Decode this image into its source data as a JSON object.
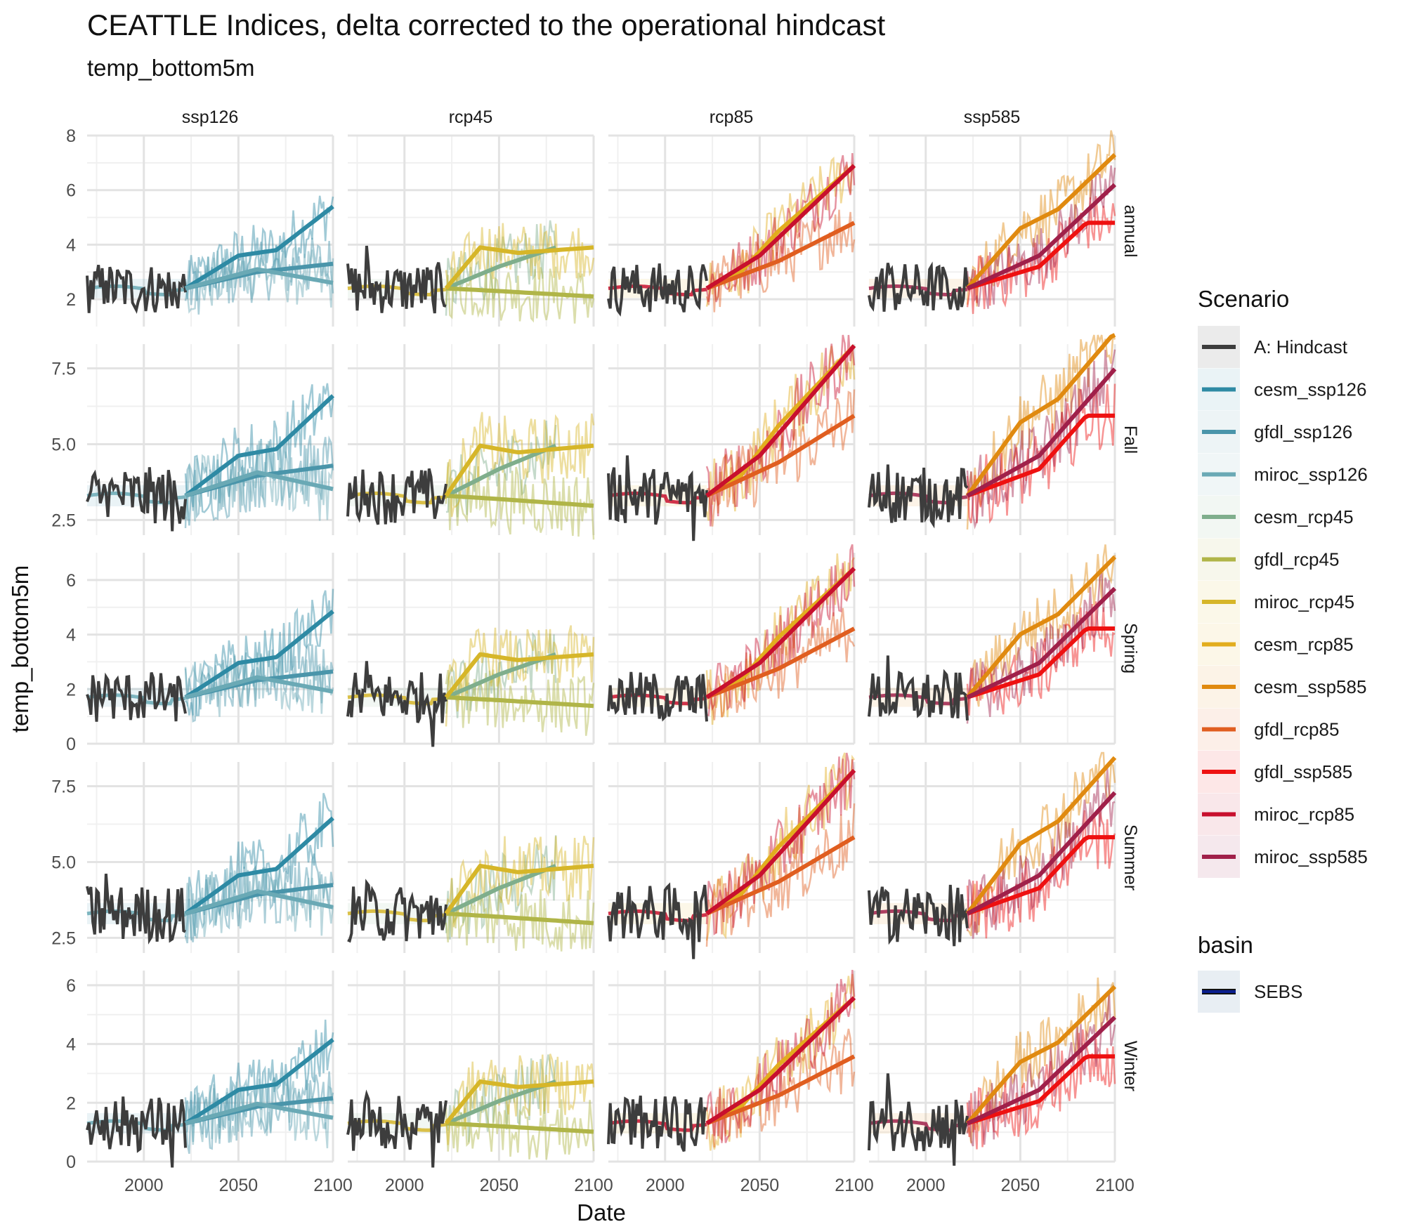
{
  "chart_data": {
    "type": "line",
    "title": "CEATTLE Indices, delta corrected to the operational hindcast",
    "subtitle": "temp_bottom5m",
    "xlabel": "Date",
    "ylabel": "temp_bottom5m",
    "xlim": [
      1970,
      2100
    ],
    "x_ticks": [
      2000,
      2050,
      2100
    ],
    "x_tick_labels": [
      "2000",
      "2050",
      "2100"
    ],
    "columns": [
      "ssp126",
      "rcp45",
      "rcp85",
      "ssp585"
    ],
    "rows": [
      {
        "label": "annual",
        "ylim": [
          1,
          8
        ],
        "y_ticks": [
          2,
          4,
          6,
          8
        ],
        "y_tick_labels": [
          "2",
          "4",
          "6",
          "8"
        ],
        "base": 2.4
      },
      {
        "label": "Fall",
        "ylim": [
          2,
          8.3
        ],
        "y_ticks": [
          2.5,
          5.0,
          7.5
        ],
        "y_tick_labels": [
          "2.5",
          "5.0",
          "7.5"
        ],
        "base": 3.3
      },
      {
        "label": "Spring",
        "ylim": [
          0,
          7
        ],
        "y_ticks": [
          0,
          2,
          4,
          6
        ],
        "y_tick_labels": [
          "0",
          "2",
          "4",
          "6"
        ],
        "base": 1.7
      },
      {
        "label": "Summer",
        "ylim": [
          2,
          8.3
        ],
        "y_ticks": [
          2.5,
          5.0,
          7.5
        ],
        "y_tick_labels": [
          "2.5",
          "5.0",
          "7.5"
        ],
        "base": 3.3
      },
      {
        "label": "Winter",
        "ylim": [
          0,
          6.5
        ],
        "y_ticks": [
          0,
          2,
          4,
          6
        ],
        "y_tick_labels": [
          "0",
          "2",
          "4",
          "6"
        ],
        "base": 1.3
      }
    ],
    "hindcast": {
      "name": "A: Hindcast",
      "x_range": [
        1970,
        2022
      ],
      "color": "#3d3d3d"
    },
    "projections": {
      "ssp126": [
        {
          "name": "cesm_ssp126",
          "color": "#2e8aa4",
          "end": 2100,
          "trend": [
            [
              2022,
              2.4
            ],
            [
              2050,
              3.6
            ],
            [
              2070,
              3.8
            ],
            [
              2100,
              5.4
            ]
          ]
        },
        {
          "name": "gfdl_ssp126",
          "color": "#4a95aa",
          "end": 2100,
          "trend": [
            [
              2022,
              2.4
            ],
            [
              2060,
              3.0
            ],
            [
              2100,
              3.3
            ]
          ]
        },
        {
          "name": "miroc_ssp126",
          "color": "#6aa9b5",
          "end": 2100,
          "trend": [
            [
              2022,
              2.4
            ],
            [
              2060,
              3.1
            ],
            [
              2100,
              2.6
            ]
          ]
        }
      ],
      "rcp45": [
        {
          "name": "cesm_rcp45",
          "color": "#7fae8c",
          "end": 2080,
          "trend": [
            [
              2022,
              2.4
            ],
            [
              2050,
              3.2
            ],
            [
              2080,
              3.9
            ]
          ]
        },
        {
          "name": "gfdl_rcp45",
          "color": "#b0b548",
          "end": 2100,
          "trend": [
            [
              2022,
              2.4
            ],
            [
              2050,
              2.3
            ],
            [
              2100,
              2.1
            ]
          ]
        },
        {
          "name": "miroc_rcp45",
          "color": "#d6b629",
          "end": 2100,
          "trend": [
            [
              2022,
              2.4
            ],
            [
              2040,
              3.9
            ],
            [
              2060,
              3.7
            ],
            [
              2100,
              3.9
            ]
          ]
        }
      ],
      "rcp85": [
        {
          "name": "cesm_rcp85",
          "color": "#e2ad1e",
          "end": 2100,
          "trend": [
            [
              2022,
              2.4
            ],
            [
              2040,
              3.0
            ],
            [
              2060,
              4.5
            ],
            [
              2100,
              6.9
            ]
          ]
        },
        {
          "name": "gfdl_rcp85",
          "color": "#e05e20",
          "end": 2100,
          "trend": [
            [
              2022,
              2.4
            ],
            [
              2060,
              3.4
            ],
            [
              2100,
              4.8
            ]
          ]
        },
        {
          "name": "miroc_rcp85",
          "color": "#c8102e",
          "end": 2100,
          "trend": [
            [
              2022,
              2.4
            ],
            [
              2050,
              3.6
            ],
            [
              2100,
              6.9
            ]
          ]
        }
      ],
      "ssp585": [
        {
          "name": "cesm_ssp585",
          "color": "#e08a10",
          "end": 2100,
          "trend": [
            [
              2022,
              2.4
            ],
            [
              2050,
              4.6
            ],
            [
              2070,
              5.3
            ],
            [
              2100,
              7.3
            ]
          ]
        },
        {
          "name": "gfdl_ssp585",
          "color": "#ee1111",
          "end": 2100,
          "trend": [
            [
              2022,
              2.4
            ],
            [
              2060,
              3.2
            ],
            [
              2085,
              4.8
            ],
            [
              2100,
              4.8
            ]
          ]
        },
        {
          "name": "miroc_ssp585",
          "color": "#a0204a",
          "end": 2100,
          "trend": [
            [
              2022,
              2.4
            ],
            [
              2060,
              3.6
            ],
            [
              2100,
              6.2
            ]
          ]
        }
      ]
    },
    "row_offsets": {
      "annual": 0.0,
      "Fall": 0.9,
      "Spring": -0.7,
      "Summer": 0.9,
      "Winter": -1.1
    },
    "row_scale": {
      "annual": 1.0,
      "Fall": 1.1,
      "Spring": 1.05,
      "Summer": 1.05,
      "Winter": 0.95
    },
    "legend": {
      "scenario_title": "Scenario",
      "scenario_items": [
        {
          "label": "A: Hindcast",
          "color": "#3d3d3d"
        },
        {
          "label": "cesm_ssp126",
          "color": "#2e8aa4"
        },
        {
          "label": "gfdl_ssp126",
          "color": "#4a95aa"
        },
        {
          "label": "miroc_ssp126",
          "color": "#6aa9b5"
        },
        {
          "label": "cesm_rcp45",
          "color": "#7fae8c"
        },
        {
          "label": "gfdl_rcp45",
          "color": "#b0b548"
        },
        {
          "label": "miroc_rcp45",
          "color": "#d6b629"
        },
        {
          "label": "cesm_rcp85",
          "color": "#e2ad1e"
        },
        {
          "label": "cesm_ssp585",
          "color": "#e08a10"
        },
        {
          "label": "gfdl_rcp85",
          "color": "#e05e20"
        },
        {
          "label": "gfdl_ssp585",
          "color": "#ee1111"
        },
        {
          "label": "miroc_rcp85",
          "color": "#c8102e"
        },
        {
          "label": "miroc_ssp585",
          "color": "#a0204a"
        }
      ],
      "basin_title": "basin",
      "basin_items": [
        {
          "label": "SEBS",
          "color": "#0a1f8f"
        }
      ]
    },
    "grid": true,
    "legend_position": "right"
  }
}
